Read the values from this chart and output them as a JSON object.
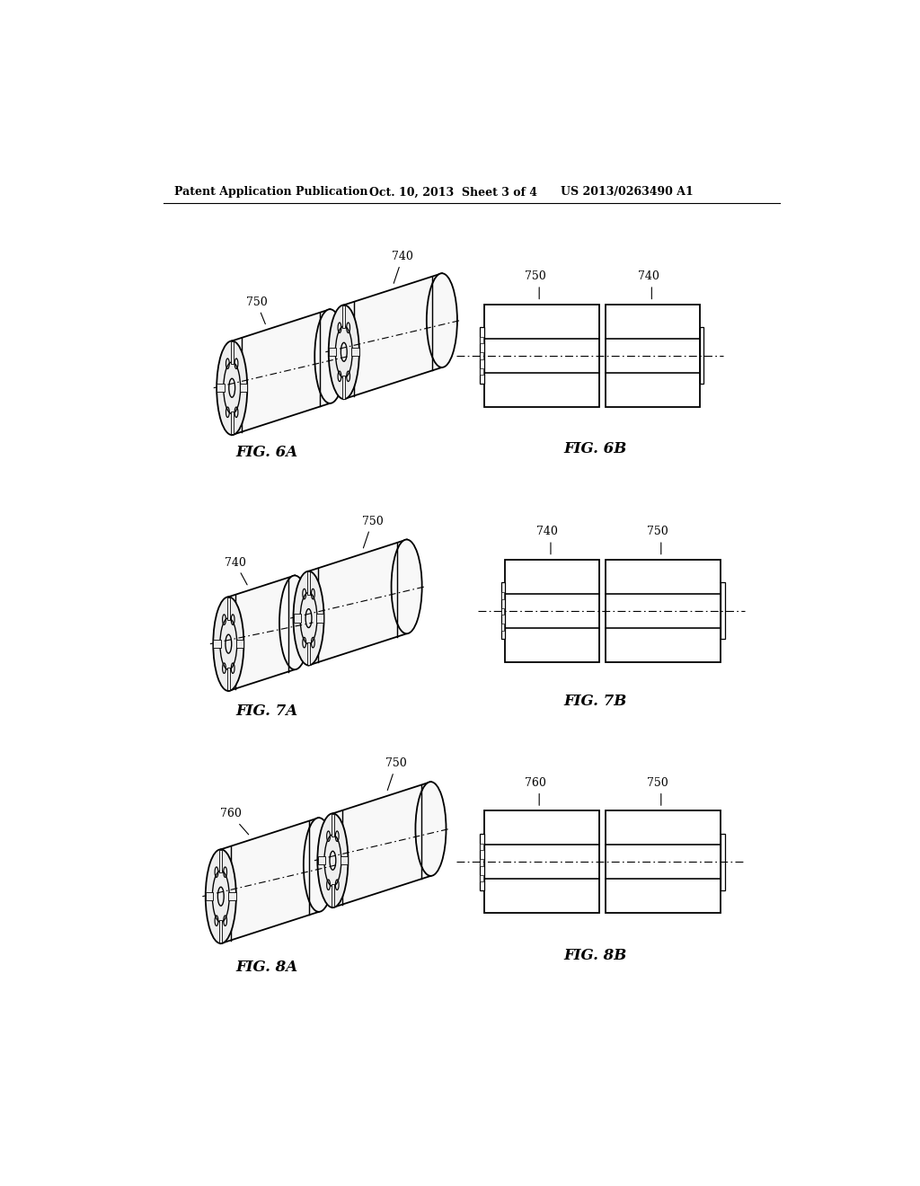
{
  "background_color": "#ffffff",
  "header_left": "Patent Application Publication",
  "header_mid": "Oct. 10, 2013  Sheet 3 of 4",
  "header_right": "US 2013/0263490 A1",
  "fig6a_label": "FIG. 6A",
  "fig6b_label": "FIG. 6B",
  "fig7a_label": "FIG. 7A",
  "fig7b_label": "FIG. 7B",
  "fig8a_label": "FIG. 8A",
  "fig8b_label": "FIG. 8B",
  "line_color": "#000000"
}
